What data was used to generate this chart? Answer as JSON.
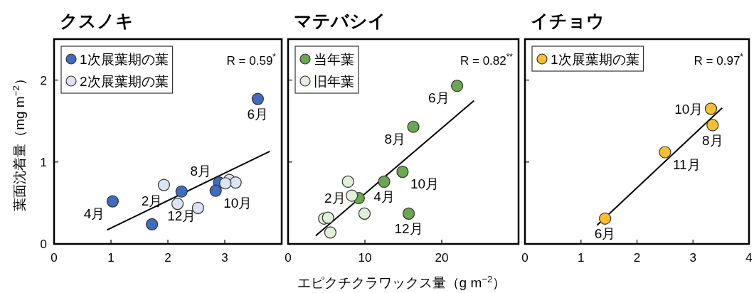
{
  "chart_data": [
    {
      "type": "scatter",
      "title": "クスノキ",
      "ylabel": "葉面沈着量（mg m$^{−2}$）",
      "xlim": [
        0,
        4
      ],
      "ylim": [
        0,
        2.5
      ],
      "xticks": [
        0,
        1,
        2,
        3
      ],
      "yticks": [
        0,
        1,
        2
      ],
      "legend": "top left",
      "marker": "circle",
      "series": [
        {
          "name": "1次展葉期の葉",
          "color": "#3f6cc0",
          "x": [
            1.03,
            1.72,
            2.24,
            2.9,
            2.84,
            3.58
          ],
          "values": [
            0.52,
            0.24,
            0.64,
            0.75,
            0.65,
            1.77
          ]
        },
        {
          "name": "2次展葉期の葉",
          "color": "#dbe4f2",
          "x": [
            1.93,
            2.17,
            2.53,
            3.08,
            3.19,
            3.01
          ],
          "values": [
            0.72,
            0.49,
            0.44,
            0.78,
            0.75,
            0.74
          ]
        },
        {
          "type": "line",
          "marker": "none",
          "color": "#000000",
          "x": [
            0.93,
            3.79
          ],
          "values": [
            0.17,
            1.13
          ]
        }
      ],
      "annotations": [
        "R = 0.59$^{*}$",
        {
          "text": "6月",
          "x": 3.58,
          "y": 1.77
        },
        {
          "text": "8月",
          "x": 2.9,
          "y": 0.75
        },
        {
          "text": "12月",
          "x": 2.24,
          "y": 0.64
        },
        {
          "text": "10月",
          "x": 2.84,
          "y": 0.65
        },
        {
          "text": "4月",
          "x": 1.03,
          "y": 0.52
        },
        {
          "text": "2月",
          "x": 1.72,
          "y": 0.24
        }
      ]
    },
    {
      "type": "scatter",
      "title": "マテバシイ",
      "xlabel": "エピクチクラワックス量（g m$^{−2}$）",
      "xlim": [
        0,
        30
      ],
      "ylim": [
        0,
        2.5
      ],
      "xticks": [
        0,
        10,
        20
      ],
      "yticks": [
        0,
        1,
        2
      ],
      "tick_labels": "x",
      "legend": "top left",
      "marker": "circle",
      "series": [
        {
          "name": "当年葉",
          "color": "#6aa84f",
          "x": [
            22.0,
            16.3,
            14.9,
            12.5,
            9.2,
            15.7
          ],
          "values": [
            1.93,
            1.43,
            0.88,
            0.76,
            0.56,
            0.37
          ]
        },
        {
          "name": "旧年葉",
          "color": "#e2f0d9",
          "x": [
            7.8,
            8.3,
            9.95,
            4.7,
            5.2,
            5.5
          ],
          "values": [
            0.76,
            0.59,
            0.37,
            0.31,
            0.32,
            0.14
          ]
        },
        {
          "type": "line",
          "marker": "none",
          "color": "#000000",
          "x": [
            3.6,
            24.2
          ],
          "values": [
            0.1,
            1.75
          ]
        }
      ],
      "annotations": [
        "R = 0.82$^{**}$",
        {
          "text": "6月",
          "x": 22.0,
          "y": 1.93
        },
        {
          "text": "8月",
          "x": 16.3,
          "y": 1.43
        },
        {
          "text": "10月",
          "x": 14.9,
          "y": 0.88
        },
        {
          "text": "4月",
          "x": 12.5,
          "y": 0.76
        },
        {
          "text": "2月",
          "x": 9.2,
          "y": 0.56
        },
        {
          "text": "12月",
          "x": 15.7,
          "y": 0.37
        }
      ]
    },
    {
      "type": "scatter",
      "title": "イチョウ",
      "xlim": [
        0,
        4
      ],
      "ylim": [
        0,
        2.5
      ],
      "xticks": [
        0,
        1,
        2,
        3,
        4
      ],
      "yticks": [
        0,
        1,
        2
      ],
      "tick_labels": "x",
      "legend": "top left",
      "marker": "circle",
      "series": [
        {
          "name": "1次展葉期の葉",
          "color": "#fbbf2d",
          "x": [
            3.32,
            3.35,
            2.5,
            1.43
          ],
          "values": [
            1.65,
            1.45,
            1.12,
            0.31
          ]
        },
        {
          "type": "line",
          "marker": "none",
          "color": "#000000",
          "x": [
            1.29,
            3.52
          ],
          "values": [
            0.23,
            1.66
          ]
        }
      ],
      "annotations": [
        "R = 0.97$^{*}$",
        {
          "text": "10月",
          "x": 3.32,
          "y": 1.65
        },
        {
          "text": "8月",
          "x": 3.35,
          "y": 1.45
        },
        {
          "text": "11月",
          "x": 2.5,
          "y": 1.12
        },
        {
          "text": "6月",
          "x": 1.43,
          "y": 0.31
        }
      ]
    }
  ]
}
